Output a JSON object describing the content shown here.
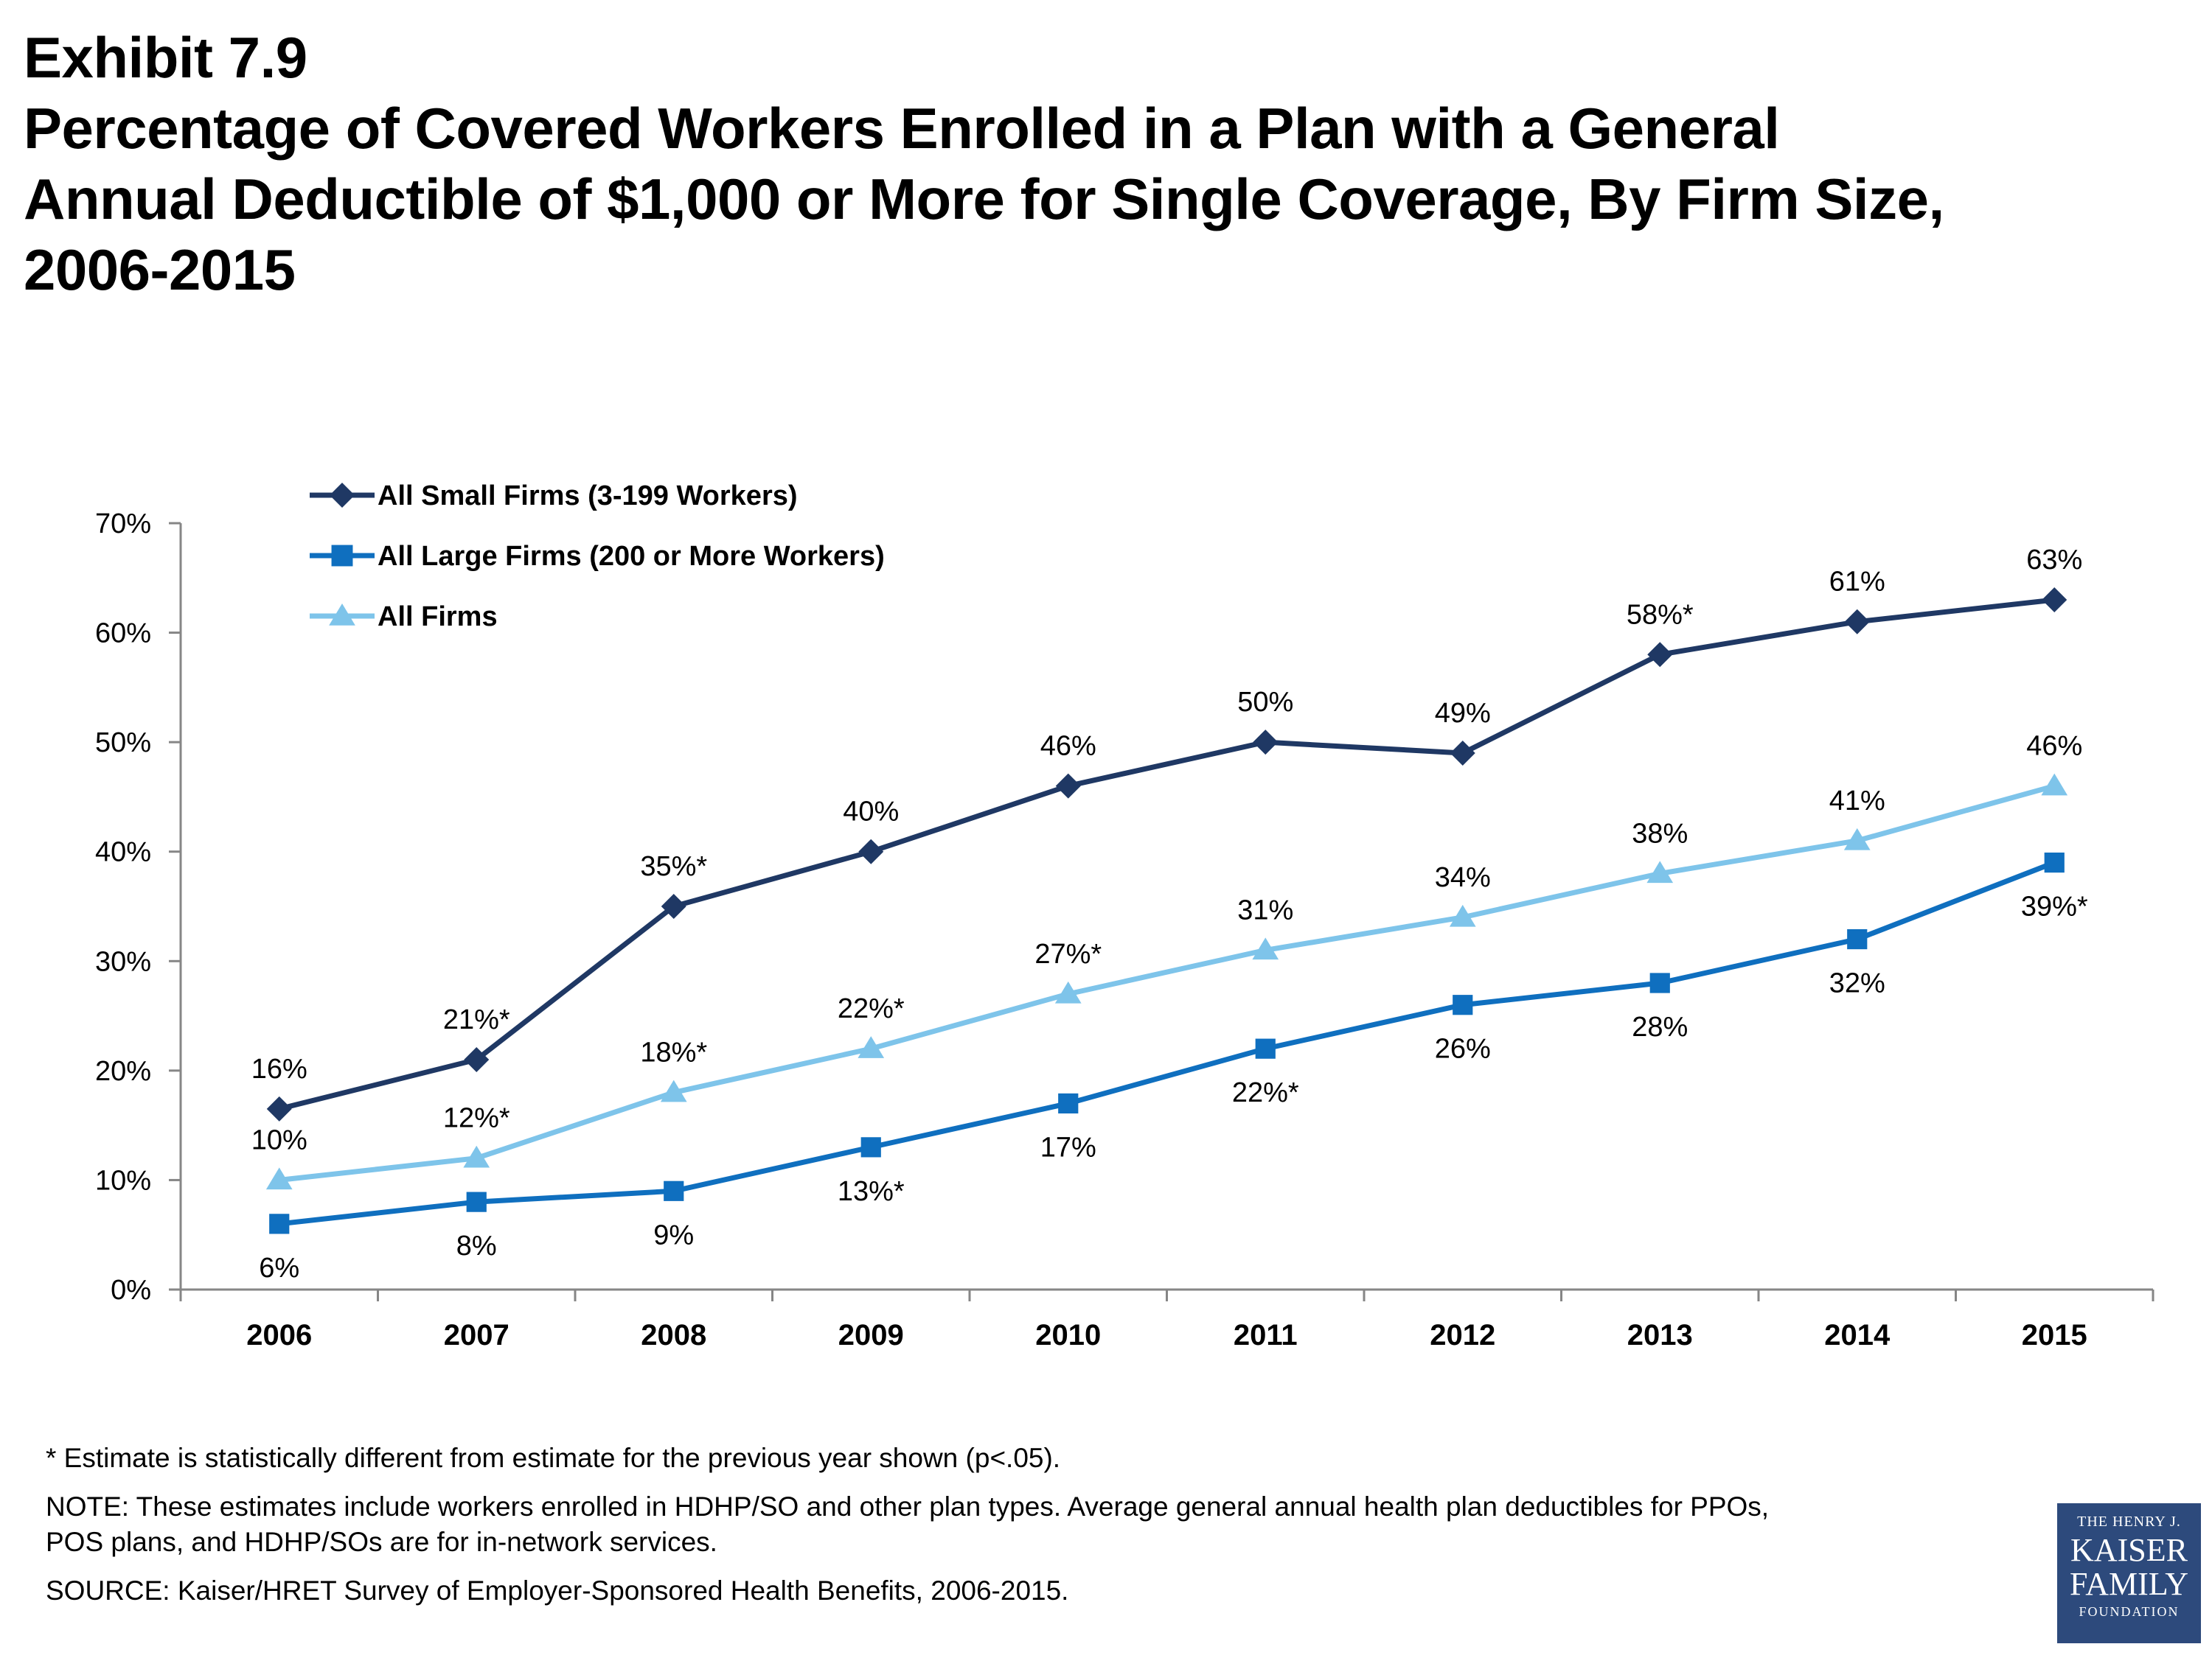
{
  "header": {
    "exhibit": "Exhibit 7.9",
    "title_lines": [
      "Percentage of Covered Workers Enrolled in a Plan with a General",
      "Annual Deductible of $1,000 or More for Single Coverage, By Firm Size,",
      "2006-2015"
    ]
  },
  "chart_data": {
    "type": "line",
    "categories": [
      "2006",
      "2007",
      "2008",
      "2009",
      "2010",
      "2011",
      "2012",
      "2013",
      "2014",
      "2015"
    ],
    "ylim": [
      0,
      70
    ],
    "yticks": [
      0,
      10,
      20,
      30,
      40,
      50,
      60,
      70
    ],
    "ytick_labels": [
      "0%",
      "10%",
      "20%",
      "30%",
      "40%",
      "50%",
      "60%",
      "70%"
    ],
    "legend_position": "top-left",
    "grid": false,
    "series": [
      {
        "name": "All Small Firms (3-199 Workers)",
        "color": "#1f3864",
        "marker": "diamond",
        "values": [
          16.5,
          21,
          35,
          40,
          46,
          50,
          49,
          58,
          61,
          63
        ],
        "labels": [
          "16%",
          "21%*",
          "35%*",
          "40%",
          "46%",
          "50%",
          "49%",
          "58%*",
          "61%",
          "63%"
        ],
        "label_position": [
          "above",
          "above",
          "above",
          "above",
          "above",
          "above",
          "above",
          "above",
          "above",
          "above"
        ]
      },
      {
        "name": "All Large Firms (200 or More Workers)",
        "color": "#0f6fbf",
        "marker": "square",
        "values": [
          6,
          8,
          9,
          13,
          17,
          22,
          26,
          28,
          32,
          39
        ],
        "labels": [
          "6%",
          "8%",
          "9%",
          "13%*",
          "17%",
          "22%*",
          "26%",
          "28%",
          "32%",
          "39%*"
        ],
        "label_position": [
          "below",
          "below",
          "below",
          "below",
          "below",
          "below",
          "below",
          "below",
          "below",
          "below"
        ]
      },
      {
        "name": "All Firms",
        "color": "#7ec4ea",
        "marker": "triangle",
        "values": [
          10,
          12,
          18,
          22,
          27,
          31,
          34,
          38,
          41,
          46
        ],
        "labels": [
          "10%",
          "12%*",
          "18%*",
          "22%*",
          "27%*",
          "31%",
          "34%",
          "38%",
          "41%",
          "46%"
        ],
        "label_position": [
          "above",
          "above",
          "above",
          "above",
          "above",
          "above",
          "above",
          "above",
          "above",
          "above"
        ]
      }
    ]
  },
  "footnotes": {
    "significance": "* Estimate is statistically different from estimate for the previous year shown (p<.05).",
    "note_line1": "NOTE: These estimates include workers enrolled in HDHP/SO and other plan types. Average general annual health plan deductibles for PPOs,",
    "note_line2": "POS plans, and HDHP/SOs are for in-network services.",
    "source": "SOURCE: Kaiser/HRET Survey of Employer-Sponsored Health Benefits, 2006-2015."
  },
  "logo": {
    "line1": "THE HENRY J.",
    "line2": "KAISER",
    "line3": "FAMILY",
    "line4": "FOUNDATION"
  }
}
